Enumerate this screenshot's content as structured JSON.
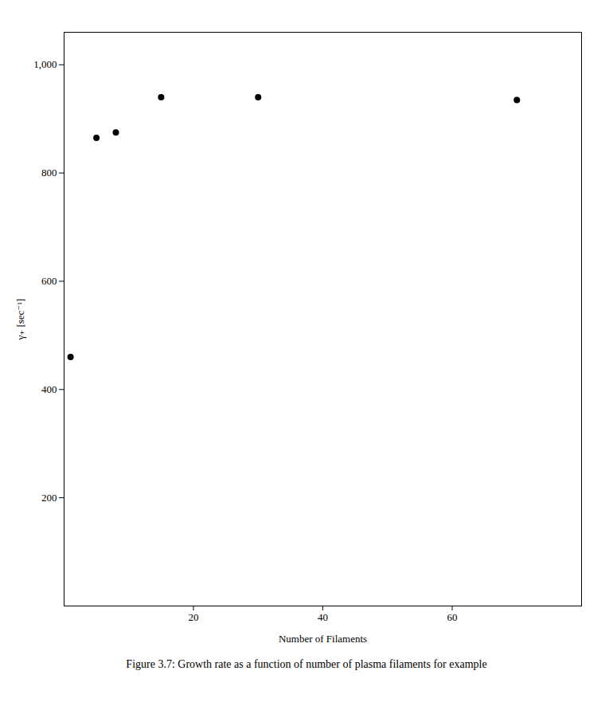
{
  "chart_data": {
    "type": "scatter",
    "x": [
      1,
      5,
      8,
      15,
      30,
      70
    ],
    "values": [
      460,
      865,
      875,
      940,
      940,
      935
    ],
    "xlabel": "Number of Filaments",
    "ylabel": "γ₊ [sec⁻¹]",
    "caption": "Figure 3.7:  Growth rate as a function of number of plasma filaments for example",
    "xlim": [
      0,
      80
    ],
    "ylim": [
      0,
      1060
    ],
    "xticks": [
      20,
      40,
      60
    ],
    "yticks": [
      200,
      400,
      600,
      800,
      1000
    ],
    "color": "#000000",
    "grid": false
  }
}
